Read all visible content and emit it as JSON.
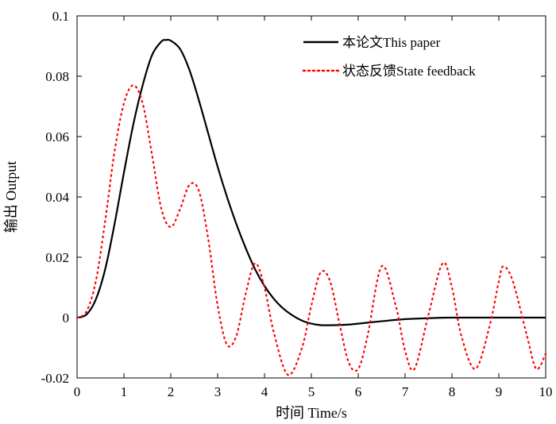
{
  "chart_data": {
    "type": "line",
    "xlabel": "时间 Time/s",
    "ylabel": "输出 Output",
    "xlim": [
      0,
      10
    ],
    "ylim": [
      -0.02,
      0.1
    ],
    "xticks": [
      0,
      1,
      2,
      3,
      4,
      5,
      6,
      7,
      8,
      9,
      10
    ],
    "yticks": [
      -0.02,
      0,
      0.02,
      0.04,
      0.06,
      0.08,
      0.1
    ],
    "xtick_labels": [
      "0",
      "1",
      "2",
      "3",
      "4",
      "5",
      "6",
      "7",
      "8",
      "9",
      "10"
    ],
    "ytick_labels": [
      "-0.02",
      "0",
      "0.02",
      "0.04",
      "0.06",
      "0.08",
      "0.1"
    ],
    "grid": false,
    "legend_position": "top-right",
    "series": [
      {
        "name": "本论文This paper",
        "color": "#000000",
        "style": "solid",
        "x": [
          0,
          0.2,
          0.4,
          0.6,
          0.8,
          1.0,
          1.2,
          1.4,
          1.6,
          1.8,
          1.9,
          2.0,
          2.2,
          2.4,
          2.6,
          2.8,
          3.0,
          3.2,
          3.4,
          3.6,
          3.8,
          4.0,
          4.2,
          4.4,
          4.6,
          4.8,
          5.0,
          5.2,
          5.5,
          5.8,
          6.0,
          6.5,
          7.0,
          7.5,
          8.0,
          9.0,
          10.0
        ],
        "y": [
          0,
          0.001,
          0.006,
          0.016,
          0.031,
          0.048,
          0.064,
          0.077,
          0.087,
          0.0915,
          0.092,
          0.0918,
          0.089,
          0.082,
          0.072,
          0.061,
          0.05,
          0.04,
          0.031,
          0.023,
          0.016,
          0.0105,
          0.0062,
          0.003,
          0.0007,
          -0.001,
          -0.002,
          -0.0025,
          -0.0025,
          -0.0023,
          -0.002,
          -0.0012,
          -0.0005,
          -0.0002,
          0,
          0,
          0
        ]
      },
      {
        "name": "状态反馈State feedback",
        "color": "#ff0000",
        "style": "dotted",
        "x": [
          0,
          0.2,
          0.4,
          0.6,
          0.8,
          1.0,
          1.2,
          1.4,
          1.6,
          1.8,
          2.0,
          2.2,
          2.4,
          2.6,
          2.8,
          3.0,
          3.2,
          3.4,
          3.6,
          3.8,
          4.0,
          4.2,
          4.5,
          4.8,
          5.0,
          5.2,
          5.4,
          5.6,
          5.8,
          6.0,
          6.2,
          6.5,
          6.8,
          7.0,
          7.2,
          7.5,
          7.8,
          8.0,
          8.2,
          8.5,
          8.8,
          9.0,
          9.1,
          9.3,
          9.6,
          9.8,
          10.0
        ],
        "y": [
          0,
          0.002,
          0.012,
          0.032,
          0.055,
          0.071,
          0.077,
          0.071,
          0.054,
          0.036,
          0.03,
          0.036,
          0.044,
          0.042,
          0.026,
          0.004,
          -0.009,
          -0.006,
          0.008,
          0.018,
          0.01,
          -0.005,
          -0.019,
          -0.01,
          0.004,
          0.015,
          0.012,
          -0.002,
          -0.015,
          -0.017,
          -0.006,
          0.017,
          0.004,
          -0.011,
          -0.017,
          0.001,
          0.018,
          0.01,
          -0.006,
          -0.017,
          -0.003,
          0.012,
          0.017,
          0.012,
          -0.006,
          -0.017,
          -0.012
        ]
      }
    ]
  }
}
